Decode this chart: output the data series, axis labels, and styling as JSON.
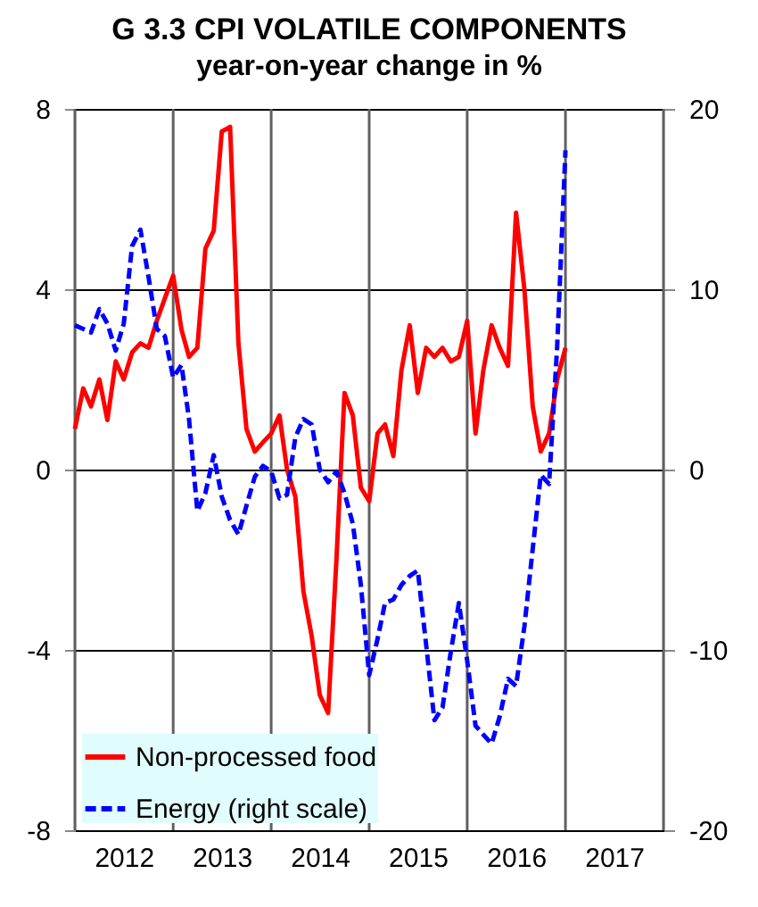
{
  "chart_data": {
    "type": "line",
    "title": "G 3.3 CPI VOLATILE COMPONENTS",
    "subtitle": "year-on-year change in %",
    "x": [
      "2012-01",
      "2012-02",
      "2012-03",
      "2012-04",
      "2012-05",
      "2012-06",
      "2012-07",
      "2012-08",
      "2012-09",
      "2012-10",
      "2012-11",
      "2012-12",
      "2013-01",
      "2013-02",
      "2013-03",
      "2013-04",
      "2013-05",
      "2013-06",
      "2013-07",
      "2013-08",
      "2013-09",
      "2013-10",
      "2013-11",
      "2013-12",
      "2014-01",
      "2014-02",
      "2014-03",
      "2014-04",
      "2014-05",
      "2014-06",
      "2014-07",
      "2014-08",
      "2014-09",
      "2014-10",
      "2014-11",
      "2014-12",
      "2015-01",
      "2015-02",
      "2015-03",
      "2015-04",
      "2015-05",
      "2015-06",
      "2015-07",
      "2015-08",
      "2015-09",
      "2015-10",
      "2015-11",
      "2015-12",
      "2016-01",
      "2016-02",
      "2016-03",
      "2016-04",
      "2016-05",
      "2016-06",
      "2016-07",
      "2016-08",
      "2016-09",
      "2016-10",
      "2016-11",
      "2016-12",
      "2017-01"
    ],
    "series": [
      {
        "name": "Non-processed food",
        "color": "#ff0000",
        "line_style": "solid",
        "values": [
          0.9,
          1.8,
          1.4,
          2.0,
          1.1,
          2.4,
          2.0,
          2.6,
          2.8,
          2.7,
          3.3,
          3.8,
          4.3,
          3.1,
          2.5,
          2.7,
          4.9,
          5.3,
          7.5,
          7.6,
          2.8,
          0.9,
          0.4,
          0.6,
          0.8,
          1.2,
          0.0,
          -0.6,
          -2.7,
          -3.7,
          -5.0,
          -5.4,
          -2.0,
          1.7,
          1.2,
          -0.4,
          -0.7,
          0.8,
          1.0,
          0.3,
          2.2,
          3.2,
          1.7,
          2.7,
          2.5,
          2.7,
          2.4,
          2.5,
          3.3,
          0.8,
          2.2,
          3.2,
          2.7,
          2.3,
          5.7,
          4.0,
          1.4,
          0.4,
          0.8,
          2.0,
          2.7
        ]
      },
      {
        "name": "Energy (right scale)",
        "color": "#0000ff",
        "line_style": "dashed",
        "axis": "y2",
        "values": [
          8.0,
          7.8,
          7.6,
          8.9,
          8.1,
          6.6,
          8.1,
          12.4,
          13.3,
          10.7,
          7.8,
          7.4,
          5.1,
          5.8,
          2.8,
          -2.3,
          -1.3,
          0.8,
          -1.5,
          -2.8,
          -3.6,
          -2.0,
          -0.4,
          0.2,
          -0.1,
          -1.6,
          -1.4,
          1.8,
          2.8,
          2.5,
          0.0,
          -0.7,
          -0.1,
          -1.3,
          -3.0,
          -6.4,
          -11.4,
          -9.4,
          -7.4,
          -7.2,
          -6.4,
          -5.9,
          -5.6,
          -9.7,
          -13.9,
          -13.2,
          -10.1,
          -7.4,
          -10.6,
          -14.2,
          -14.7,
          -15.2,
          -13.7,
          -11.6,
          -12.0,
          -8.7,
          -4.4,
          -0.3,
          -0.8,
          6.8,
          17.7
        ]
      }
    ],
    "xlim": [
      "2012-01",
      "2018-01"
    ],
    "xticks": [
      {
        "value": "2012-01",
        "label": null
      },
      {
        "value": "2012-07",
        "label": "2012"
      },
      {
        "value": "2013-01",
        "label": null
      },
      {
        "value": "2013-07",
        "label": "2013"
      },
      {
        "value": "2014-01",
        "label": null
      },
      {
        "value": "2014-07",
        "label": "2014"
      },
      {
        "value": "2015-01",
        "label": null
      },
      {
        "value": "2015-07",
        "label": "2015"
      },
      {
        "value": "2016-01",
        "label": null
      },
      {
        "value": "2016-07",
        "label": "2016"
      },
      {
        "value": "2017-01",
        "label": null
      },
      {
        "value": "2017-07",
        "label": "2017"
      },
      {
        "value": "2018-01",
        "label": null
      }
    ],
    "ylim": [
      -8,
      8
    ],
    "yticks": [
      -8,
      -4,
      0,
      4,
      8
    ],
    "y2lim": [
      -20,
      20
    ],
    "y2ticks": [
      -20,
      -10,
      0,
      10,
      20
    ],
    "grid": true,
    "legend": "bottom left"
  }
}
